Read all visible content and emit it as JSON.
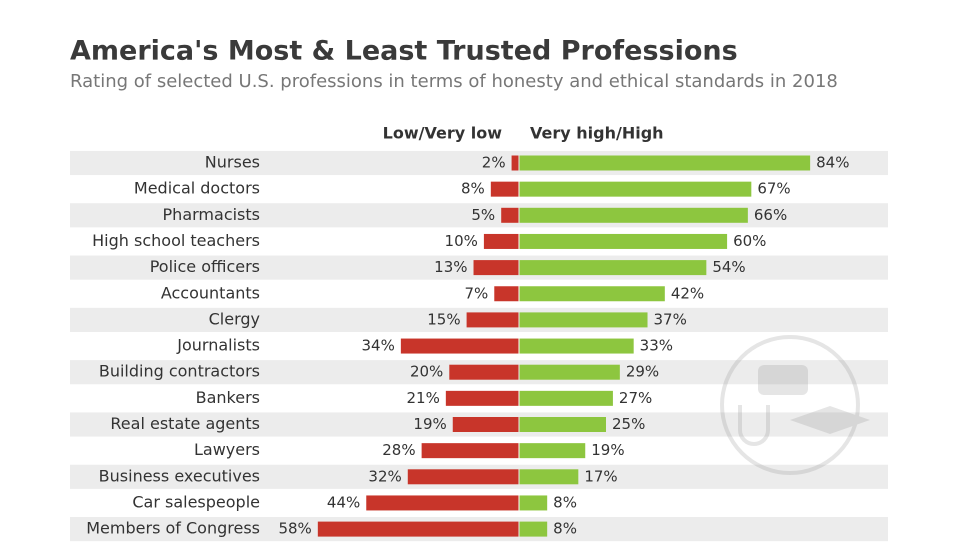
{
  "chart_data": {
    "type": "bar",
    "title": "America's Most & Least Trusted Professions",
    "subtitle": "Rating of selected U.S. professions in terms of honesty and ethical standards in 2018",
    "categories": [
      "Nurses",
      "Medical doctors",
      "Pharmacists",
      "High school teachers",
      "Police officers",
      "Accountants",
      "Clergy",
      "Journalists",
      "Building contractors",
      "Bankers",
      "Real estate agents",
      "Lawyers",
      "Business executives",
      "Car salespeople",
      "Members of Congress"
    ],
    "series": [
      {
        "name": "Low/Very low",
        "color": "#c8352a",
        "values": [
          2,
          8,
          5,
          10,
          13,
          7,
          15,
          34,
          20,
          21,
          19,
          28,
          32,
          44,
          58
        ],
        "value_labels": [
          "2%",
          "8%",
          "5%",
          "10%",
          "13%",
          "7%",
          "15%",
          "34%",
          "20%",
          "21%",
          "19%",
          "28%",
          "32%",
          "44%",
          "58%"
        ]
      },
      {
        "name": "Very high/High",
        "color": "#8dc63f",
        "values": [
          84,
          67,
          66,
          60,
          54,
          42,
          37,
          33,
          29,
          27,
          25,
          19,
          17,
          8,
          8
        ],
        "value_labels": [
          "84%",
          "67%",
          "66%",
          "60%",
          "54%",
          "42%",
          "37%",
          "33%",
          "29%",
          "27%",
          "25%",
          "19%",
          "17%",
          "8%",
          "8%"
        ]
      }
    ]
  }
}
